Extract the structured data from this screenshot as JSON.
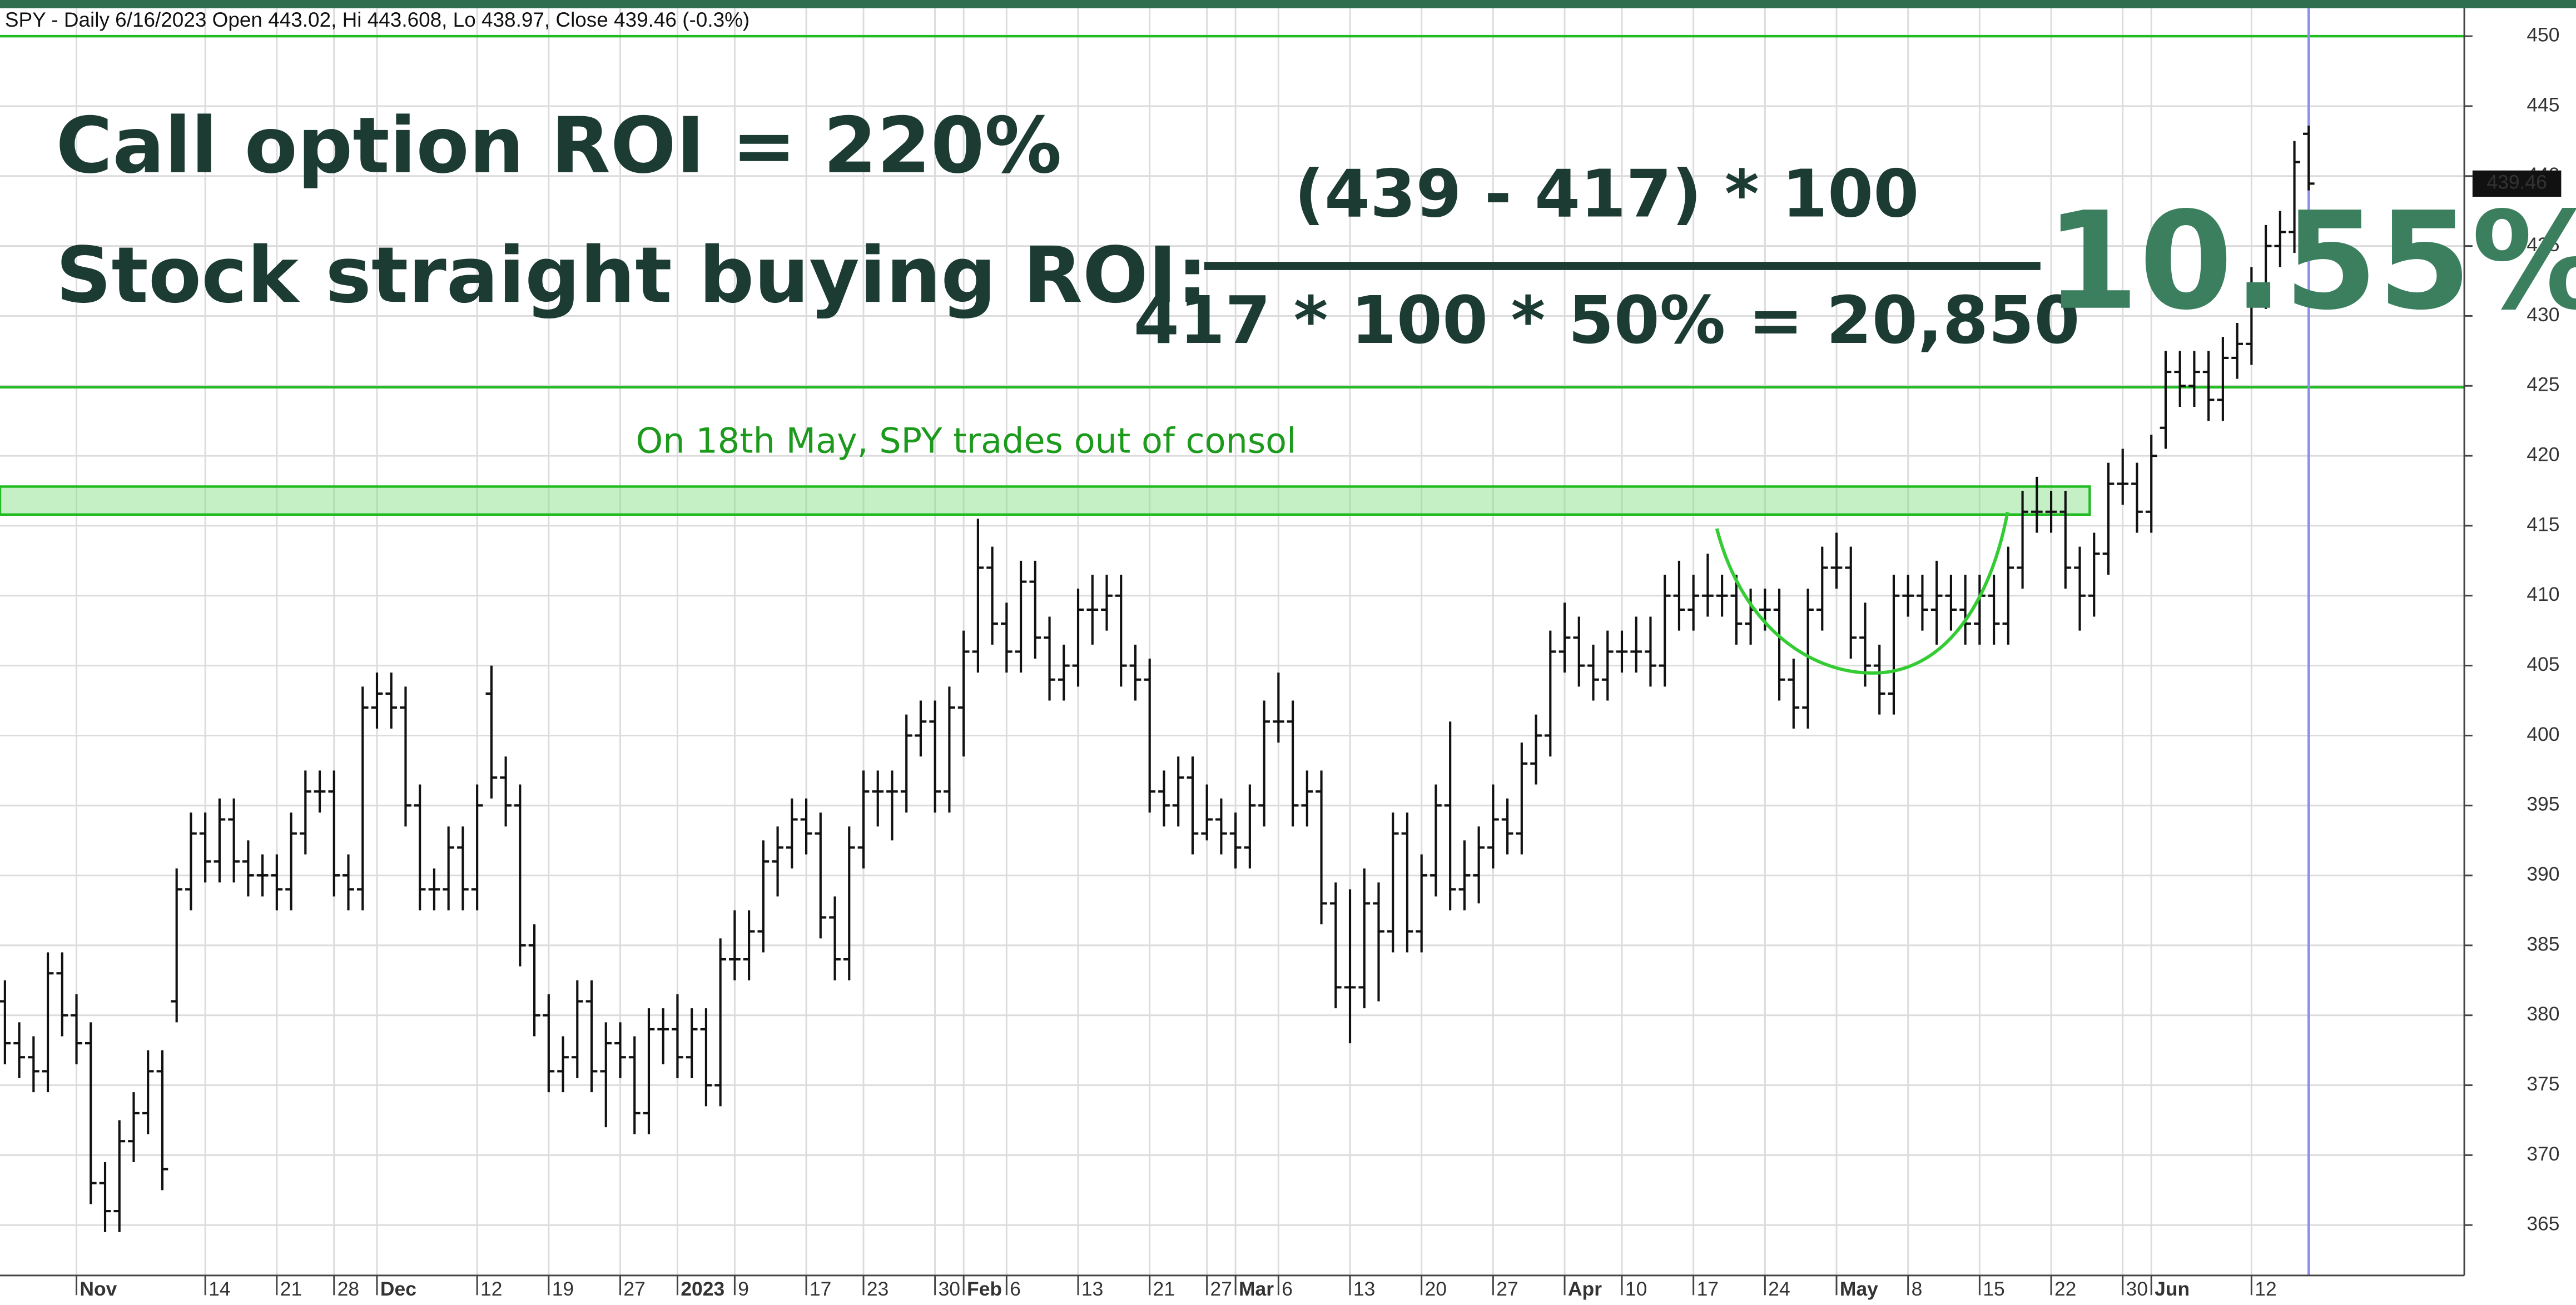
{
  "chart_data": {
    "type": "ohlc",
    "header": "SPY - Daily 6/16/2023 Open 443.02, Hi 443.608, Lo 438.97, Close 439.46 (-0.3%)",
    "annotations": {
      "call_roi": "Call option ROI = 220%",
      "stock_roi": "Stock straight buying ROI:",
      "numerator": "(439 - 417) * 100",
      "denominator": "417 * 100 * 50% = 20,850",
      "result": "10.55%",
      "note": "On 18th May, SPY trades out of consol"
    },
    "last_label": "439.46",
    "bar_color": "#111111",
    "line_color": "#22bb22",
    "zone_color": "#7fdc7f",
    "cursor_color": "#8c8cf0",
    "hlines": [
      450,
      424.9
    ],
    "zone": [
      415.8,
      417.8
    ],
    "ylim": [
      361.4,
      452
    ],
    "yticks": [
      365,
      370,
      375,
      380,
      385,
      390,
      395,
      400,
      405,
      410,
      415,
      420,
      425,
      430,
      435,
      440,
      445,
      450
    ],
    "grid": true,
    "categories": [
      null,
      null,
      null,
      null,
      null,
      "Nov",
      null,
      null,
      null,
      null,
      null,
      null,
      null,
      null,
      "14",
      null,
      null,
      null,
      null,
      "21",
      null,
      null,
      null,
      "28",
      null,
      null,
      "Dec",
      null,
      null,
      null,
      null,
      null,
      null,
      "12",
      null,
      null,
      null,
      null,
      "19",
      null,
      null,
      null,
      null,
      "27",
      null,
      null,
      null,
      "2023",
      null,
      null,
      null,
      "9",
      null,
      null,
      null,
      null,
      "17",
      null,
      null,
      null,
      "23",
      null,
      null,
      null,
      null,
      "30",
      null,
      "Feb",
      null,
      null,
      "6",
      null,
      null,
      null,
      null,
      "13",
      null,
      null,
      null,
      null,
      "21",
      null,
      null,
      null,
      "27",
      null,
      "Mar",
      null,
      null,
      "6",
      null,
      null,
      null,
      null,
      "13",
      null,
      null,
      null,
      null,
      "20",
      null,
      null,
      null,
      null,
      "27",
      null,
      null,
      null,
      null,
      "Apr",
      null,
      null,
      null,
      "10",
      null,
      null,
      null,
      null,
      "17",
      null,
      null,
      null,
      null,
      "24",
      null,
      null,
      null,
      null,
      "May",
      null,
      null,
      null,
      null,
      "8",
      null,
      null,
      null,
      null,
      "15",
      null,
      null,
      null,
      null,
      "22",
      null,
      null,
      null,
      null,
      "30",
      null,
      "Jun",
      null,
      null,
      null,
      null,
      null,
      null,
      "12",
      null,
      null,
      null,
      null
    ],
    "ohlc": [
      [
        381,
        382.5,
        376.5,
        378
      ],
      [
        378,
        379.5,
        375.5,
        377
      ],
      [
        377,
        378.5,
        374.5,
        376
      ],
      [
        376,
        384.5,
        374.5,
        383
      ],
      [
        383,
        384.5,
        378.5,
        380
      ],
      [
        380,
        381.5,
        376.5,
        378
      ],
      [
        378,
        379.5,
        366.5,
        368
      ],
      [
        368,
        369.5,
        364.5,
        366
      ],
      [
        366,
        372.5,
        364.5,
        371
      ],
      [
        371,
        374.5,
        369.5,
        373
      ],
      [
        373,
        377.5,
        371.5,
        376
      ],
      [
        376,
        377.5,
        367.5,
        369
      ],
      [
        381,
        390.5,
        379.5,
        389
      ],
      [
        389,
        394.5,
        387.5,
        393
      ],
      [
        393,
        394.5,
        389.5,
        391
      ],
      [
        391,
        395.5,
        389.5,
        394
      ],
      [
        394,
        395.5,
        389.5,
        391
      ],
      [
        391,
        392.5,
        388.5,
        390
      ],
      [
        390,
        391.5,
        388.5,
        390
      ],
      [
        390,
        391.5,
        387.5,
        389
      ],
      [
        389,
        394.5,
        387.5,
        393
      ],
      [
        393,
        397.5,
        391.5,
        396
      ],
      [
        396,
        397.5,
        394.5,
        396
      ],
      [
        396,
        397.5,
        388.5,
        390
      ],
      [
        390,
        391.5,
        387.5,
        389
      ],
      [
        389,
        403.5,
        387.5,
        402
      ],
      [
        402,
        404.5,
        400.5,
        403
      ],
      [
        403,
        404.5,
        400.5,
        402
      ],
      [
        402,
        403.5,
        393.5,
        395
      ],
      [
        395,
        396.5,
        387.5,
        389
      ],
      [
        389,
        390.5,
        387.5,
        389
      ],
      [
        389,
        393.5,
        387.5,
        392
      ],
      [
        392,
        393.5,
        387.5,
        389
      ],
      [
        389,
        396.5,
        387.5,
        395
      ],
      [
        403,
        405,
        395.5,
        397
      ],
      [
        397,
        398.5,
        393.5,
        395
      ],
      [
        395,
        396.5,
        383.5,
        385
      ],
      [
        385,
        386.5,
        378.5,
        380
      ],
      [
        380,
        381.5,
        374.5,
        376
      ],
      [
        376,
        378.5,
        374.5,
        377
      ],
      [
        377,
        382.5,
        375.5,
        381
      ],
      [
        381,
        382.5,
        374.5,
        376
      ],
      [
        376,
        379.5,
        372,
        378
      ],
      [
        378,
        379.5,
        375.5,
        377
      ],
      [
        377,
        378.5,
        371.5,
        373
      ],
      [
        373,
        380.5,
        371.5,
        379
      ],
      [
        379,
        380.5,
        376.5,
        379
      ],
      [
        379,
        381.5,
        375.5,
        377
      ],
      [
        377,
        380.5,
        375.5,
        379
      ],
      [
        379,
        380.5,
        373.5,
        375
      ],
      [
        375,
        385.5,
        373.5,
        384
      ],
      [
        384,
        387.5,
        382.5,
        384
      ],
      [
        384,
        387.5,
        382.5,
        386
      ],
      [
        386,
        392.5,
        384.5,
        391
      ],
      [
        391,
        393.5,
        388.5,
        392
      ],
      [
        392,
        395.5,
        390.5,
        394
      ],
      [
        394,
        395.5,
        391.5,
        393
      ],
      [
        393,
        394.5,
        385.5,
        387
      ],
      [
        387,
        388.5,
        382.5,
        384
      ],
      [
        384,
        393.5,
        382.5,
        392
      ],
      [
        392,
        397.5,
        390.5,
        396
      ],
      [
        396,
        397.5,
        393.5,
        396
      ],
      [
        396,
        397.5,
        392.5,
        396
      ],
      [
        396,
        401.5,
        394.5,
        400
      ],
      [
        400,
        402.5,
        398.5,
        401
      ],
      [
        401,
        402.5,
        394.5,
        396
      ],
      [
        396,
        403.5,
        394.5,
        402
      ],
      [
        402,
        407.5,
        398.5,
        406
      ],
      [
        406,
        415.5,
        404.5,
        412
      ],
      [
        412,
        413.5,
        406.5,
        408
      ],
      [
        408,
        409.5,
        404.5,
        406
      ],
      [
        406,
        412.5,
        404.5,
        411
      ],
      [
        411,
        412.5,
        405.5,
        407
      ],
      [
        407,
        408.5,
        402.5,
        404
      ],
      [
        404,
        406.5,
        402.5,
        405
      ],
      [
        405,
        410.5,
        403.5,
        409
      ],
      [
        409,
        411.5,
        406.5,
        409
      ],
      [
        409,
        411.5,
        407.5,
        410
      ],
      [
        410,
        411.5,
        403.5,
        405
      ],
      [
        405,
        406.5,
        402.5,
        404
      ],
      [
        404,
        405.5,
        394.5,
        396
      ],
      [
        396,
        397.5,
        393.5,
        395
      ],
      [
        395,
        398.5,
        393.5,
        397
      ],
      [
        397,
        398.5,
        391.5,
        393
      ],
      [
        393,
        396.5,
        392.5,
        394
      ],
      [
        394,
        395.5,
        391.5,
        393
      ],
      [
        393,
        394.5,
        390.5,
        392
      ],
      [
        392,
        396.5,
        390.5,
        395
      ],
      [
        395,
        402.5,
        393.5,
        401
      ],
      [
        401,
        404.5,
        399.5,
        401
      ],
      [
        401,
        402.5,
        393.5,
        395
      ],
      [
        395,
        397.5,
        393.5,
        396
      ],
      [
        396,
        397.5,
        386.5,
        388
      ],
      [
        388,
        389.5,
        380.5,
        382
      ],
      [
        382,
        389,
        378,
        382
      ],
      [
        382,
        390.5,
        380.5,
        388
      ],
      [
        388,
        389.5,
        381,
        386
      ],
      [
        386,
        394.5,
        384.5,
        393
      ],
      [
        393,
        394.5,
        384.5,
        386
      ],
      [
        386,
        391.5,
        384.5,
        390
      ],
      [
        390,
        396.5,
        388.5,
        395
      ],
      [
        395,
        401,
        387.5,
        389
      ],
      [
        389,
        392.5,
        387.5,
        390
      ],
      [
        390,
        393.5,
        388,
        392
      ],
      [
        392,
        396.5,
        390.5,
        394
      ],
      [
        394,
        395.5,
        391.5,
        393
      ],
      [
        393,
        399.5,
        391.5,
        398
      ],
      [
        398,
        401.5,
        396.5,
        400
      ],
      [
        400,
        407.5,
        398.5,
        406
      ],
      [
        406,
        409.5,
        404.5,
        407
      ],
      [
        407,
        408.5,
        403.5,
        405
      ],
      [
        405,
        406.5,
        402.5,
        404
      ],
      [
        404,
        407.5,
        402.5,
        406
      ],
      [
        406,
        407.5,
        404.5,
        406
      ],
      [
        406,
        408.5,
        404.5,
        406
      ],
      [
        406,
        408.5,
        403.5,
        405
      ],
      [
        405,
        411.5,
        403.5,
        410
      ],
      [
        410,
        412.5,
        407.5,
        409
      ],
      [
        409,
        411.5,
        407.5,
        410
      ],
      [
        410,
        413,
        408.5,
        410
      ],
      [
        410,
        411.5,
        408.5,
        410
      ],
      [
        410,
        411.5,
        406.5,
        408
      ],
      [
        408,
        410.5,
        406.5,
        409
      ],
      [
        409,
        410.5,
        407.5,
        409
      ],
      [
        409,
        410.5,
        402.5,
        404
      ],
      [
        404,
        405.5,
        400.5,
        402
      ],
      [
        402,
        410.5,
        400.5,
        409
      ],
      [
        409,
        413.5,
        407.5,
        412
      ],
      [
        412,
        414.5,
        410.5,
        412
      ],
      [
        412,
        413.5,
        405.5,
        407
      ],
      [
        407,
        409.5,
        403.5,
        405
      ],
      [
        405,
        406.5,
        401.5,
        403
      ],
      [
        403,
        411.5,
        401.5,
        410
      ],
      [
        410,
        411.5,
        408.5,
        410
      ],
      [
        410,
        411.5,
        407.5,
        409
      ],
      [
        409,
        412.5,
        406.5,
        410
      ],
      [
        410,
        411.5,
        407.5,
        409
      ],
      [
        409,
        411.5,
        406.5,
        408
      ],
      [
        408,
        411.5,
        406.5,
        410
      ],
      [
        410,
        411.5,
        406.5,
        408
      ],
      [
        408,
        413.5,
        406.5,
        412
      ],
      [
        412,
        417.5,
        410.5,
        416
      ],
      [
        416,
        418.5,
        414.5,
        416
      ],
      [
        416,
        417.5,
        414.5,
        416
      ],
      [
        416,
        417.5,
        410.5,
        412
      ],
      [
        412,
        413.5,
        407.5,
        410
      ],
      [
        410,
        414.5,
        408.5,
        413
      ],
      [
        413,
        419.5,
        411.5,
        418
      ],
      [
        418,
        420.5,
        416.5,
        418
      ],
      [
        418,
        419.5,
        414.5,
        416
      ],
      [
        416,
        421.5,
        414.5,
        420
      ],
      [
        422,
        427.5,
        420.5,
        426
      ],
      [
        426,
        427.5,
        423.5,
        425
      ],
      [
        425,
        427.5,
        423.5,
        426
      ],
      [
        426,
        427.5,
        422.5,
        424
      ],
      [
        424,
        428.5,
        422.5,
        427
      ],
      [
        427,
        429.5,
        425.5,
        428
      ],
      [
        428,
        433.5,
        426.5,
        432
      ],
      [
        432,
        436.5,
        430.5,
        435
      ],
      [
        435,
        437.5,
        433.5,
        436
      ],
      [
        436,
        442.5,
        434.5,
        441
      ],
      [
        443.02,
        443.608,
        438.97,
        439.46
      ]
    ]
  }
}
